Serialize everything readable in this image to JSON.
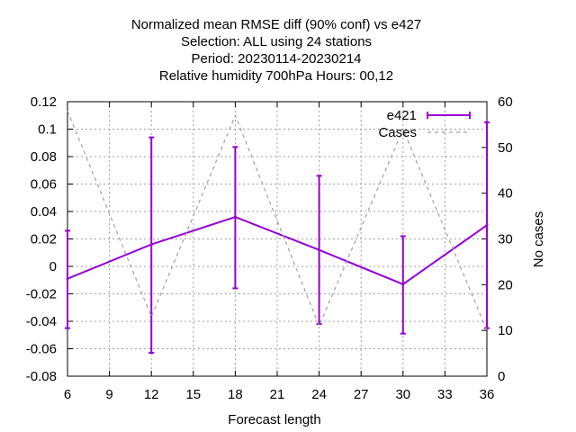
{
  "chart_data": {
    "type": "line",
    "title_lines": [
      "Normalized mean RMSE diff (90% conf) vs e427",
      "Selection: ALL using    24 stations",
      "Period: 20230114-20230214",
      "Relative humidity 700hPa   Hours:  00,12"
    ],
    "xlabel": "Forecast length",
    "ylabel": "",
    "y2label": "No cases",
    "xlim": [
      6,
      36
    ],
    "ylim": [
      -0.08,
      0.12
    ],
    "y2lim": [
      0,
      60
    ],
    "x_ticks": [
      "6",
      "9",
      "12",
      "15",
      "18",
      "21",
      "24",
      "27",
      "30",
      "33",
      "36"
    ],
    "y_ticks": [
      "0.12",
      "0.1",
      "0.08",
      "0.06",
      "0.04",
      "0.02",
      "0",
      "-0.02",
      "-0.04",
      "-0.06",
      "-0.08"
    ],
    "y2_ticks": [
      "60",
      "50",
      "40",
      "30",
      "20",
      "10",
      "0"
    ],
    "grid": true,
    "legend_position": "top-right",
    "series": [
      {
        "name": "e421",
        "color": "#9400d3",
        "axis": "y",
        "x": [
          6,
          12,
          18,
          24,
          30,
          36
        ],
        "y": [
          -0.009,
          0.016,
          0.036,
          0.012,
          -0.013,
          0.03
        ],
        "err_low": [
          -0.045,
          -0.063,
          -0.016,
          -0.042,
          -0.049,
          -0.045
        ],
        "err_high": [
          0.026,
          0.094,
          0.087,
          0.066,
          0.022,
          0.105
        ]
      },
      {
        "name": "Cases",
        "color": "#a0a0a0",
        "axis": "y2",
        "dashed": true,
        "x": [
          6,
          12,
          18,
          24,
          30,
          36
        ],
        "y": [
          58,
          13,
          57,
          11,
          54,
          10
        ]
      }
    ]
  }
}
